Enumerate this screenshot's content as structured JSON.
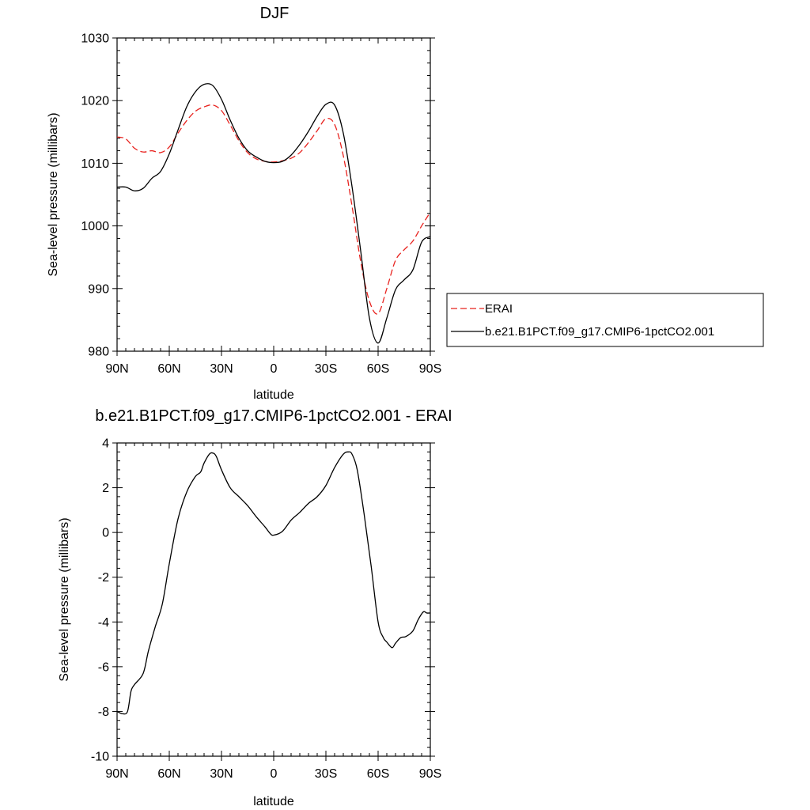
{
  "chart_data": [
    {
      "type": "line",
      "title": "DJF",
      "xlabel": "latitude",
      "ylabel": "Sea-level pressure (millibars)",
      "xlim": [
        90,
        -90
      ],
      "ylim": [
        980,
        1030
      ],
      "xticks": [
        90,
        60,
        30,
        0,
        -30,
        -60,
        -90
      ],
      "xtick_labels": [
        "90N",
        "60N",
        "30N",
        "0",
        "30S",
        "60S",
        "90S"
      ],
      "yticks": [
        980,
        990,
        1000,
        1010,
        1020,
        1030
      ],
      "ytick_labels": [
        "980",
        "990",
        "1000",
        "1010",
        "1020",
        "1030"
      ],
      "legend_position": "right",
      "series": [
        {
          "name": "ERAI",
          "color": "#e8231f",
          "dash": "dashed",
          "x": [
            90,
            85,
            80,
            75,
            70,
            65,
            60,
            55,
            50,
            45,
            40,
            35,
            30,
            25,
            20,
            15,
            10,
            5,
            0,
            -5,
            -10,
            -15,
            -20,
            -25,
            -30,
            -35,
            -40,
            -45,
            -50,
            -55,
            -60,
            -65,
            -70,
            -75,
            -80,
            -85,
            -90
          ],
          "y": [
            1014.2,
            1013.9,
            1012.4,
            1011.8,
            1012.0,
            1011.7,
            1012.6,
            1014.8,
            1016.8,
            1018.3,
            1019.0,
            1019.3,
            1018.4,
            1016.1,
            1013.6,
            1011.7,
            1010.7,
            1010.3,
            1010.2,
            1010.4,
            1010.8,
            1011.7,
            1013.3,
            1015.2,
            1017.1,
            1016.2,
            1011.2,
            1003.2,
            994.3,
            988.0,
            986.0,
            990.0,
            994.5,
            996.2,
            997.6,
            1000.0,
            1002.2
          ]
        },
        {
          "name": "b.e21.B1PCT.f09_g17.CMIP6-1pctCO2.001",
          "color": "#000000",
          "dash": "solid",
          "x": [
            90,
            85,
            80,
            75,
            70,
            65,
            60,
            55,
            50,
            45,
            40,
            35,
            30,
            25,
            20,
            15,
            10,
            5,
            0,
            -5,
            -10,
            -15,
            -20,
            -25,
            -30,
            -35,
            -40,
            -45,
            -50,
            -55,
            -60,
            -65,
            -70,
            -75,
            -80,
            -85,
            -90
          ],
          "y": [
            1006.2,
            1006.2,
            1005.6,
            1006.0,
            1007.6,
            1008.7,
            1011.5,
            1015.3,
            1019.0,
            1021.4,
            1022.6,
            1022.4,
            1020.2,
            1016.9,
            1014.0,
            1012.0,
            1011.0,
            1010.3,
            1010.1,
            1010.3,
            1011.3,
            1013.0,
            1015.1,
            1017.5,
            1019.4,
            1019.3,
            1014.8,
            1006.3,
            996.0,
            985.3,
            981.3,
            985.3,
            989.8,
            991.4,
            993.0,
            997.4,
            998.3
          ]
        }
      ]
    },
    {
      "type": "line",
      "title": "b.e21.B1PCT.f09_g17.CMIP6-1pctCO2.001 - ERAI",
      "xlabel": "latitude",
      "ylabel": "Sea-level pressure (millibars)",
      "xlim": [
        90,
        -90
      ],
      "ylim": [
        -10,
        4
      ],
      "xticks": [
        90,
        60,
        30,
        0,
        -30,
        -60,
        -90
      ],
      "xtick_labels": [
        "90N",
        "60N",
        "30N",
        "0",
        "30S",
        "60S",
        "90S"
      ],
      "yticks": [
        -10,
        -8,
        -6,
        -4,
        -2,
        0,
        2,
        4
      ],
      "ytick_labels": [
        "-10",
        "-8",
        "-6",
        "-4",
        "-2",
        "0",
        "2",
        "4"
      ],
      "series": [
        {
          "color": "#000000",
          "dash": "solid",
          "x": [
            90,
            87,
            84,
            82,
            80,
            75,
            72,
            68,
            64,
            60,
            55,
            50,
            45,
            42,
            40,
            37,
            35,
            33,
            30,
            25,
            20,
            15,
            10,
            5,
            2,
            0,
            -5,
            -10,
            -15,
            -20,
            -25,
            -30,
            -35,
            -40,
            -43,
            -45,
            -48,
            -52,
            -56,
            -60,
            -63,
            -65,
            -68,
            -70,
            -73,
            -76,
            -80,
            -83,
            -86,
            -88,
            -90
          ],
          "y": [
            -8.0,
            -8.1,
            -8.0,
            -7.1,
            -6.8,
            -6.3,
            -5.3,
            -4.2,
            -3.2,
            -1.4,
            0.6,
            1.8,
            2.5,
            2.7,
            3.1,
            3.5,
            3.55,
            3.4,
            2.8,
            2.0,
            1.6,
            1.2,
            0.7,
            0.25,
            -0.05,
            -0.12,
            0.05,
            0.55,
            0.9,
            1.3,
            1.6,
            2.1,
            2.9,
            3.5,
            3.6,
            3.5,
            2.8,
            0.8,
            -1.5,
            -4.0,
            -4.7,
            -4.9,
            -5.15,
            -4.95,
            -4.7,
            -4.65,
            -4.4,
            -3.9,
            -3.55,
            -3.6,
            -3.6
          ]
        }
      ]
    }
  ]
}
